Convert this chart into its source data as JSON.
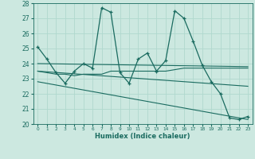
{
  "title": "",
  "xlabel": "Humidex (Indice chaleur)",
  "xlim": [
    -0.5,
    23.5
  ],
  "ylim": [
    20,
    28
  ],
  "xticks": [
    0,
    1,
    2,
    3,
    4,
    5,
    6,
    7,
    8,
    9,
    10,
    11,
    12,
    13,
    14,
    15,
    16,
    17,
    18,
    19,
    20,
    21,
    22,
    23
  ],
  "yticks": [
    20,
    21,
    22,
    23,
    24,
    25,
    26,
    27,
    28
  ],
  "bg_color": "#cce8e0",
  "line_color": "#1a6b60",
  "grid_color": "#b0d8ce",
  "line1_x": [
    0,
    1,
    2,
    3,
    4,
    5,
    6,
    7,
    8,
    9,
    10,
    11,
    12,
    13,
    14,
    15,
    16,
    17,
    18,
    19,
    20,
    21,
    22,
    23
  ],
  "line1_y": [
    25.1,
    24.3,
    23.4,
    22.7,
    23.5,
    24.0,
    23.7,
    27.7,
    27.4,
    23.4,
    22.7,
    24.3,
    24.7,
    23.5,
    24.2,
    27.5,
    27.0,
    25.5,
    23.9,
    22.8,
    22.0,
    20.4,
    20.3,
    20.5
  ],
  "line2_x": [
    0,
    1,
    2,
    3,
    4,
    5,
    6,
    7,
    8,
    9,
    10,
    11,
    12,
    13,
    14,
    15,
    16,
    17,
    18,
    19,
    20,
    21,
    22,
    23
  ],
  "line2_y": [
    23.5,
    23.4,
    23.3,
    23.3,
    23.2,
    23.3,
    23.3,
    23.3,
    23.5,
    23.5,
    23.5,
    23.5,
    23.5,
    23.5,
    23.5,
    23.6,
    23.7,
    23.7,
    23.7,
    23.7,
    23.7,
    23.7,
    23.7,
    23.7
  ],
  "line3_x": [
    0,
    23
  ],
  "line3_y": [
    24.0,
    23.8
  ],
  "line4_x": [
    0,
    23
  ],
  "line4_y": [
    23.5,
    22.5
  ],
  "line5_x": [
    0,
    23
  ],
  "line5_y": [
    22.8,
    20.3
  ]
}
